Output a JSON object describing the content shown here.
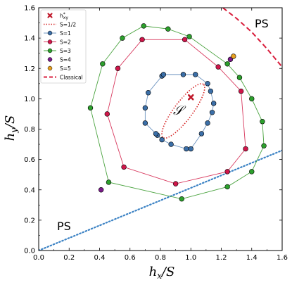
{
  "chart_data": {
    "type": "scatter",
    "xlabel": "h_x/S",
    "ylabel": "h_y/S",
    "xlim": [
      0.0,
      1.6
    ],
    "ylim": [
      0.0,
      1.6
    ],
    "xticks": [
      "0.0",
      "0.2",
      "0.4",
      "0.6",
      "0.8",
      "1.0",
      "1.2",
      "1.4",
      "1.6"
    ],
    "yticks": [
      "0.0",
      "0.2",
      "0.4",
      "0.6",
      "0.8",
      "1.0",
      "1.2",
      "1.4",
      "1.6"
    ],
    "grid": false,
    "legend_position": "top-left",
    "region_labels": {
      "ps_top": "PS",
      "ps_bottom": "PS",
      "s_symbol": "𝒮"
    },
    "legend": [
      {
        "key": "hstar",
        "label": "h*_xy",
        "marker": "x",
        "color": "#c0192b"
      },
      {
        "key": "s_half",
        "label": "S=1/2",
        "line": "dotted",
        "color": "#d62728"
      },
      {
        "key": "s1",
        "label": "S=1",
        "marker": "o",
        "color": "#3b6fa8",
        "line_color": "#6f95c0"
      },
      {
        "key": "s2",
        "label": "S=2",
        "marker": "o",
        "color": "#d0164a",
        "line_color": "#d83a5f"
      },
      {
        "key": "s3",
        "label": "S=3",
        "marker": "o",
        "color": "#2ca02c",
        "line_color": "#4aa33f"
      },
      {
        "key": "s4",
        "label": "S=4",
        "marker": "o",
        "color": "#7a1a8a"
      },
      {
        "key": "s5",
        "label": "S=5",
        "marker": "o",
        "color": "#e8a020"
      },
      {
        "key": "classical",
        "label": "Classical",
        "line": "dashed",
        "color": "#d91e3c"
      }
    ],
    "series": [
      {
        "name": "S=1",
        "closed": true,
        "points": [
          [
            0.72,
            1.04
          ],
          [
            0.81,
            1.15
          ],
          [
            0.82,
            1.16
          ],
          [
            0.95,
            1.16
          ],
          [
            1.03,
            1.16
          ],
          [
            1.11,
            1.1
          ],
          [
            1.13,
            1.05
          ],
          [
            1.15,
            0.97
          ],
          [
            1.14,
            0.91
          ],
          [
            1.11,
            0.84
          ],
          [
            1.07,
            0.77
          ],
          [
            1.0,
            0.67
          ],
          [
            0.97,
            0.67
          ],
          [
            0.87,
            0.7
          ],
          [
            0.81,
            0.73
          ],
          [
            0.78,
            0.76
          ],
          [
            0.77,
            0.77
          ],
          [
            0.7,
            0.84
          ],
          [
            0.7,
            0.94
          ]
        ]
      },
      {
        "name": "S=2",
        "closed": true,
        "points": [
          [
            0.68,
            1.39
          ],
          [
            0.96,
            1.39
          ],
          [
            1.18,
            1.21
          ],
          [
            1.33,
            1.05
          ],
          [
            1.36,
            0.67
          ],
          [
            1.24,
            0.52
          ],
          [
            0.9,
            0.44
          ],
          [
            0.56,
            0.55
          ],
          [
            0.45,
            0.9
          ],
          [
            0.52,
            1.2
          ]
        ]
      },
      {
        "name": "S=3",
        "closed": true,
        "points": [
          [
            0.69,
            1.48
          ],
          [
            0.85,
            1.46
          ],
          [
            0.99,
            1.41
          ],
          [
            1.24,
            1.23
          ],
          [
            1.32,
            1.14
          ],
          [
            1.4,
            1.0
          ],
          [
            1.47,
            0.85
          ],
          [
            1.48,
            0.69
          ],
          [
            1.4,
            0.52
          ],
          [
            1.24,
            0.42
          ],
          [
            0.94,
            0.34
          ],
          [
            0.46,
            0.45
          ],
          [
            0.34,
            0.94
          ],
          [
            0.42,
            1.23
          ],
          [
            0.55,
            1.4
          ]
        ]
      },
      {
        "name": "S=4",
        "points": [
          [
            0.41,
            0.4
          ],
          [
            1.26,
            1.26
          ]
        ]
      },
      {
        "name": "S=5",
        "points": [
          [
            1.28,
            1.28
          ]
        ]
      }
    ],
    "s_half_ellipse": {
      "center": [
        0.95,
        0.92
      ],
      "semi_major": 0.22,
      "semi_minor": 0.06,
      "angle_deg": 53
    },
    "hstar_point": [
      1.0,
      1.01
    ],
    "classical_curve": [
      [
        1.21,
        1.6
      ],
      [
        1.3,
        1.53
      ],
      [
        1.4,
        1.44
      ],
      [
        1.5,
        1.33
      ],
      [
        1.6,
        1.21
      ]
    ],
    "ps_boundary_line": [
      [
        0.0,
        0.0
      ],
      [
        1.6,
        0.66
      ]
    ]
  }
}
